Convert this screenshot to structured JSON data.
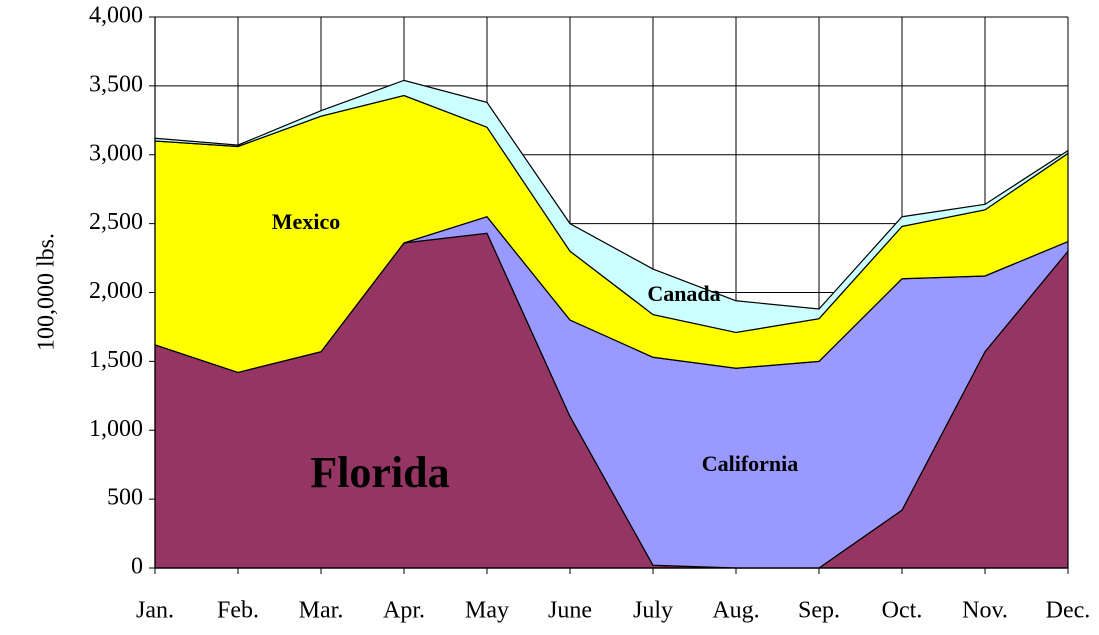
{
  "chart_data": {
    "type": "stacked-area",
    "ylabel": "100,000 lbs.",
    "categories": [
      "Jan.",
      "Feb.",
      "Mar.",
      "Apr.",
      "May",
      "June",
      "July",
      "Aug.",
      "Sep.",
      "Oct.",
      "Nov.",
      "Dec."
    ],
    "series": [
      {
        "name": "Florida",
        "color": "#953563",
        "values": [
          1620,
          1420,
          1570,
          2360,
          2430,
          1100,
          20,
          0,
          0,
          420,
          1570,
          2300
        ]
      },
      {
        "name": "California",
        "color": "#9999ff",
        "values": [
          0,
          0,
          0,
          0,
          120,
          700,
          1510,
          1450,
          1500,
          1680,
          550,
          70
        ]
      },
      {
        "name": "Mexico",
        "color": "#ffff00",
        "values": [
          1480,
          1640,
          1710,
          1070,
          650,
          500,
          310,
          260,
          310,
          380,
          480,
          640
        ]
      },
      {
        "name": "Canada",
        "color": "#ccffff",
        "values": [
          20,
          10,
          40,
          110,
          180,
          200,
          330,
          230,
          70,
          70,
          40,
          20
        ]
      }
    ],
    "ylim": [
      0,
      4000
    ],
    "yticks": [
      0,
      500,
      {
        "value": 1000,
        "label": "1,000"
      },
      {
        "value": 1500,
        "label": "1,500"
      },
      {
        "value": 2000,
        "label": "2,000"
      },
      {
        "value": 2500,
        "label": "2,500"
      },
      {
        "value": 3000,
        "label": "3,000"
      },
      {
        "value": 3500,
        "label": "3,500"
      },
      {
        "value": 4000,
        "label": "4,000"
      }
    ],
    "grid": true
  }
}
